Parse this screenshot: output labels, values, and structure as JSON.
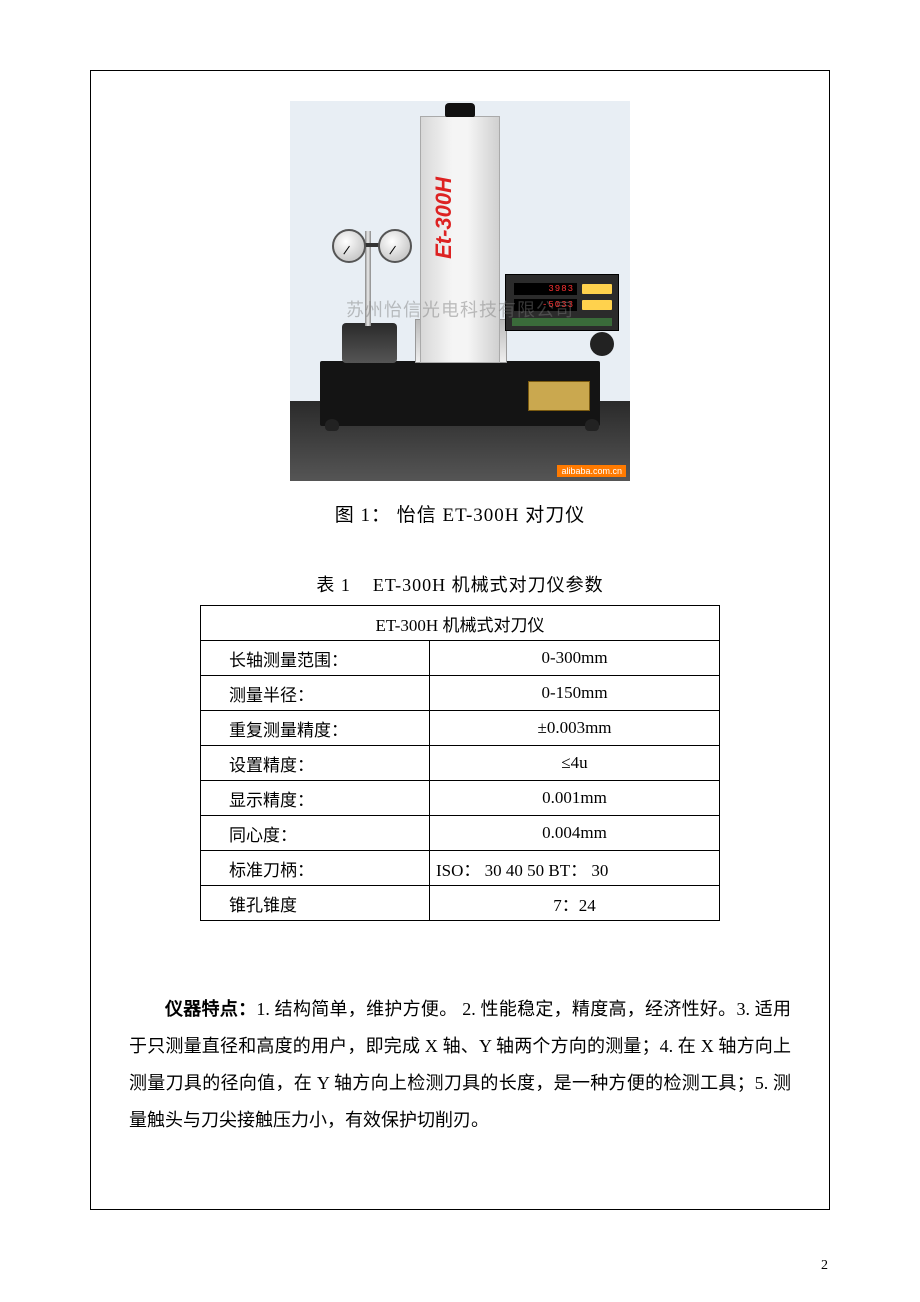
{
  "figure": {
    "column_label": "Et-300H",
    "dro_line1": "3983",
    "dro_line2": "-5033",
    "watermark": "苏州怡信光电科技有限公司",
    "alibaba": "alibaba.com.cn",
    "caption_prefix": "图 1：",
    "caption_brand": "怡信",
    "caption_model": "ET-300H",
    "caption_suffix": "对刀仪"
  },
  "table": {
    "caption_prefix": "表 1",
    "caption_title": "ET-300H 机械式对刀仪参数",
    "header": "ET-300H 机械式对刀仪",
    "rows": [
      {
        "label": "长轴测量范围：",
        "value": "0-300mm",
        "align": "center"
      },
      {
        "label": "测量半径：",
        "value": "0-150mm",
        "align": "center"
      },
      {
        "label": "重复测量精度：",
        "value": "±0.003mm",
        "align": "center"
      },
      {
        "label": "设置精度：",
        "value": "≤4u",
        "align": "center"
      },
      {
        "label": "显示精度：",
        "value": "0.001mm",
        "align": "center"
      },
      {
        "label": "同心度：",
        "value": "0.004mm",
        "align": "center"
      },
      {
        "label": "标准刀柄：",
        "value": "ISO： 30 40 50     BT： 30",
        "align": "left"
      },
      {
        "label": "锥孔锥度",
        "value": "7：24",
        "align": "center"
      }
    ]
  },
  "features": {
    "lead": "仪器特点：",
    "body": "1. 结构简单，维护方便。  2. 性能稳定，精度高，经济性好。3. 适用于只测量直径和高度的用户，即完成 X 轴、Y 轴两个方向的测量；4. 在 X 轴方向上测量刀具的径向值，在 Y 轴方向上检测刀具的长度，是一种方便的检测工具；5. 测量触头与刀尖接触压力小，有效保护切削刃。"
  },
  "page_number": "2"
}
